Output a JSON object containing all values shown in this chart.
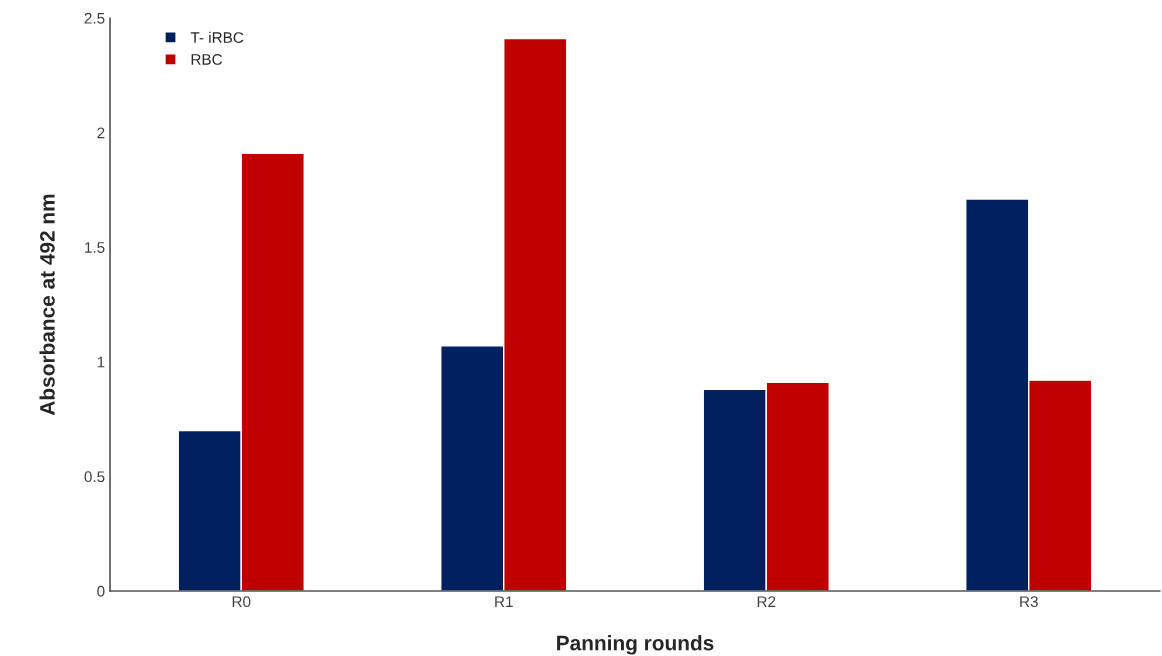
{
  "chart_data": {
    "type": "bar",
    "xlabel": "Panning rounds",
    "ylabel": "Absorbance at 492 nm",
    "categories": [
      "R0",
      "R1",
      "R2",
      "R3"
    ],
    "series": [
      {
        "name": "T- iRBC",
        "color": "#002060",
        "values": [
          0.7,
          1.07,
          0.88,
          1.71
        ]
      },
      {
        "name": "RBC",
        "color": "#c00000",
        "values": [
          1.91,
          2.41,
          0.91,
          0.92
        ]
      }
    ],
    "ylim": [
      0,
      2.5
    ],
    "yticks": [
      0,
      0.5,
      1,
      1.5,
      2,
      2.5
    ],
    "grid": false,
    "legend": "top left"
  }
}
